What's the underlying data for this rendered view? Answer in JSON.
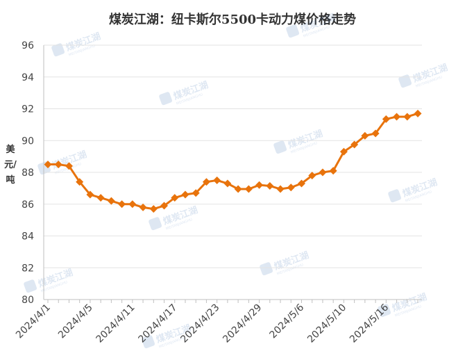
{
  "chart_data": {
    "type": "line",
    "title": "煤炭江湖：纽卡斯尔5500卡动力煤价格走势",
    "ylabel": "美元/吨",
    "xlabel": "",
    "ylim": [
      80,
      96
    ],
    "yticks": [
      80,
      82,
      84,
      86,
      88,
      90,
      92,
      94,
      96
    ],
    "xtick_labels": [
      "2024/4/1",
      "2024/4/5",
      "2024/4/11",
      "2024/4/17",
      "2024/4/23",
      "2024/4/29",
      "2024/5/6",
      "2024/5/10",
      "2024/5/16"
    ],
    "xtick_positions": [
      0,
      4,
      8,
      12,
      16,
      20,
      24,
      28,
      32
    ],
    "color": "#E8730C",
    "grid": true,
    "legend": "none",
    "values": [
      88.5,
      88.5,
      88.4,
      87.4,
      86.6,
      86.4,
      86.2,
      86.0,
      86.0,
      85.8,
      85.7,
      85.9,
      86.4,
      86.6,
      86.7,
      87.4,
      87.5,
      87.3,
      86.95,
      86.95,
      87.2,
      87.15,
      86.95,
      87.05,
      87.3,
      87.8,
      88.0,
      88.1,
      89.3,
      89.75,
      90.3,
      90.45,
      91.35,
      91.5,
      91.5,
      91.7
    ]
  },
  "watermark": {
    "text": "煤炭江湖",
    "subtext": "MEITANJIANGHU"
  }
}
